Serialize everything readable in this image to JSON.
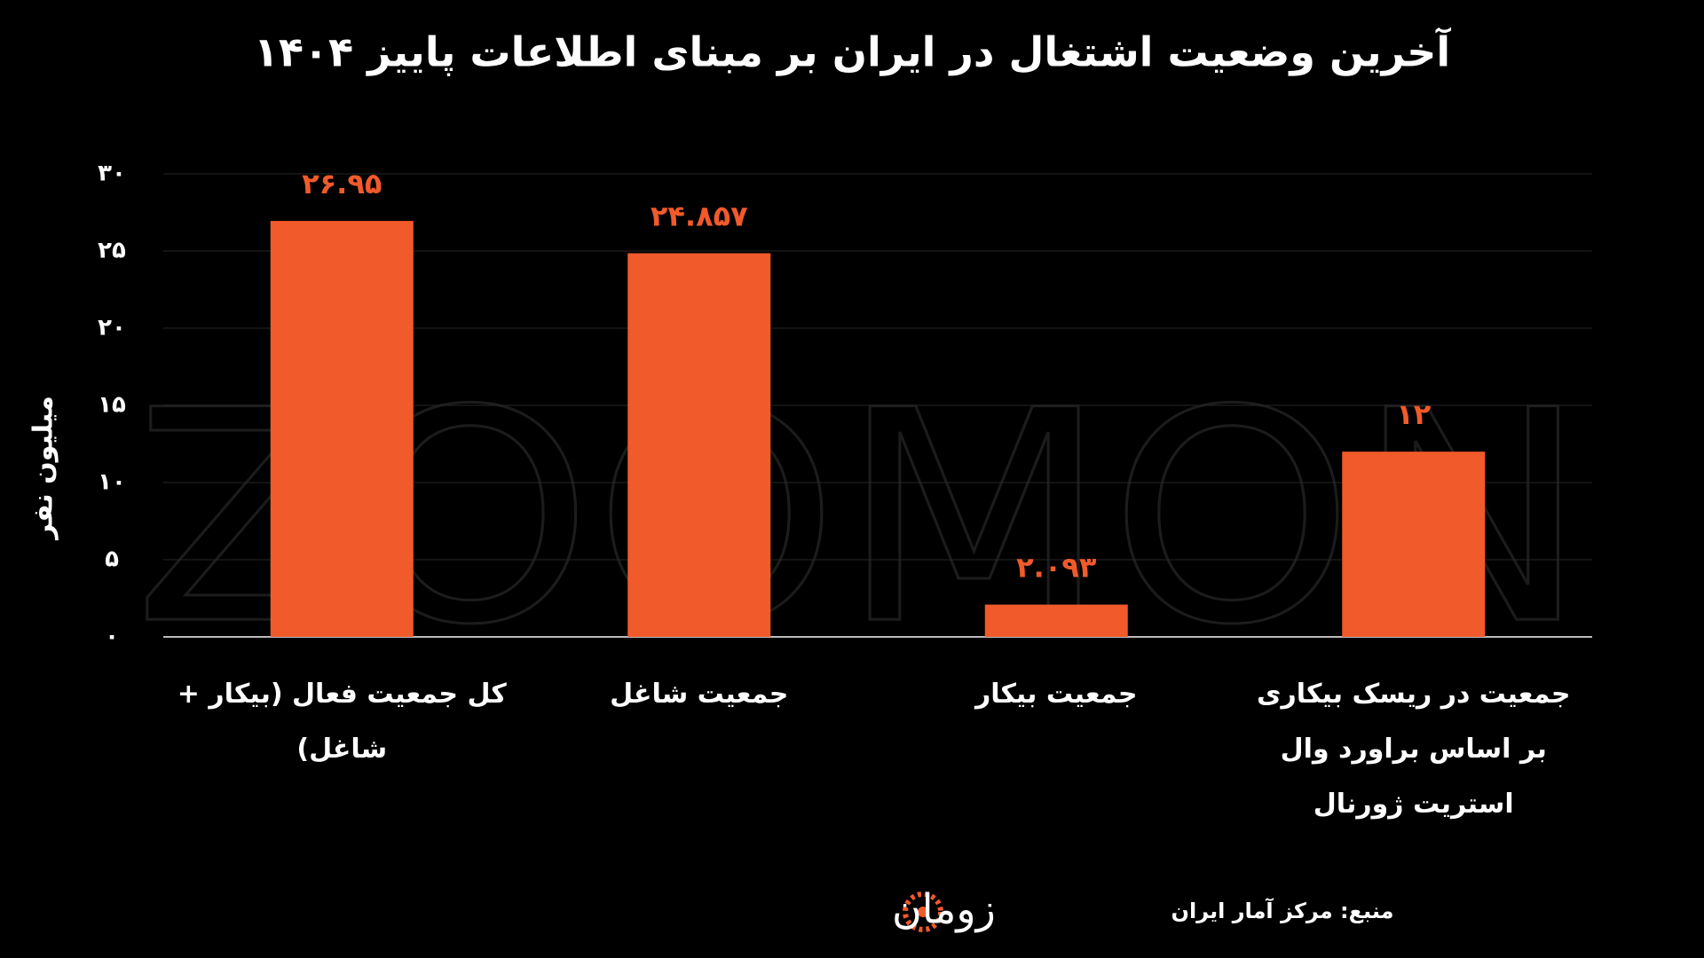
{
  "chart_data": {
    "type": "bar",
    "title": "آخرین وضعیت اشتغال در ایران بر مبنای اطلاعات پاییز ۱۴۰۴",
    "y_label": "میلیون نفر",
    "categories": [
      "کل جمعیت فعال (بیکار + شاغل)",
      "جمعیت شاغل",
      "جمعیت بیکار",
      "جمعیت در ریسک بیکاری بر اساس براورد وال استریت ژورنال"
    ],
    "values": [
      26.95,
      24.857,
      2.093,
      12
    ],
    "value_labels": [
      "۲۶.۹۵",
      "۲۴.۸۵۷",
      "۲.۰۹۳",
      "۱۲"
    ],
    "color": "#f15a2b",
    "ylim": [
      0,
      30
    ],
    "yticks": [
      {
        "value": 0,
        "label": "۰"
      },
      {
        "value": 5,
        "label": "۵"
      },
      {
        "value": 10,
        "label": "۱۰"
      },
      {
        "value": 15,
        "label": "۱۵"
      },
      {
        "value": 20,
        "label": "۲۰"
      },
      {
        "value": 25,
        "label": "۲۵"
      },
      {
        "value": 30,
        "label": "۳۰"
      }
    ],
    "grid": true,
    "watermark": "ZOOMON",
    "source": "منبع: مرکز آمار ایران",
    "logo": "زومان"
  }
}
